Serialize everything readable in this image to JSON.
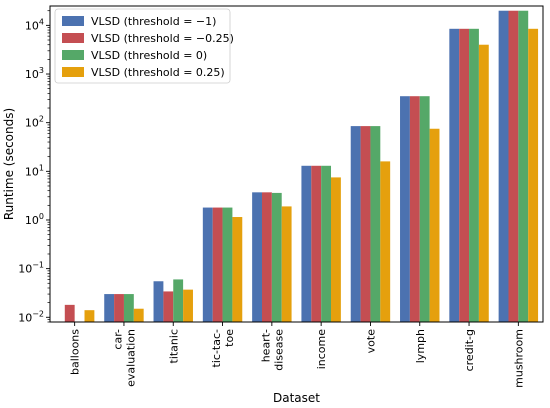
{
  "chart_data": {
    "type": "bar",
    "xlabel": "Dataset",
    "ylabel": "Runtime (seconds)",
    "yscale": "log",
    "ylim": [
      0.008,
      25000
    ],
    "yticks": [
      {
        "value": 0.01,
        "base": "10",
        "exp": "−2"
      },
      {
        "value": 0.1,
        "base": "10",
        "exp": "−1"
      },
      {
        "value": 1,
        "base": "10",
        "exp": "0"
      },
      {
        "value": 10,
        "base": "10",
        "exp": "1"
      },
      {
        "value": 100,
        "base": "10",
        "exp": "2"
      },
      {
        "value": 1000,
        "base": "10",
        "exp": "3"
      },
      {
        "value": 10000,
        "base": "10",
        "exp": "4"
      }
    ],
    "categories": [
      "balloons",
      "car-\nevaluation",
      "titanic",
      "tic-tac-\ntoe",
      "heart-\ndisease",
      "income",
      "vote",
      "lymph",
      "credit-g",
      "mushroom"
    ],
    "legend_position": "top-left",
    "series": [
      {
        "name": "VLSD (threshold = −1)",
        "color": "#4c72b0",
        "values": [
          null,
          0.03,
          0.055,
          1.8,
          3.7,
          13,
          85,
          350,
          8500,
          20000
        ]
      },
      {
        "name": "VLSD (threshold = −0.25)",
        "color": "#c44e52",
        "values": [
          0.018,
          0.03,
          0.034,
          1.8,
          3.7,
          13,
          85,
          350,
          8500,
          20000
        ]
      },
      {
        "name": "VLSD (threshold = 0)",
        "color": "#55a868",
        "values": [
          null,
          0.03,
          0.06,
          1.8,
          3.6,
          13,
          85,
          350,
          8500,
          20000
        ]
      },
      {
        "name": "VLSD (threshold = 0.25)",
        "color": "#e5a00d",
        "values": [
          0.014,
          0.015,
          0.037,
          1.15,
          1.9,
          7.5,
          16,
          75,
          4000,
          8500
        ]
      }
    ]
  }
}
